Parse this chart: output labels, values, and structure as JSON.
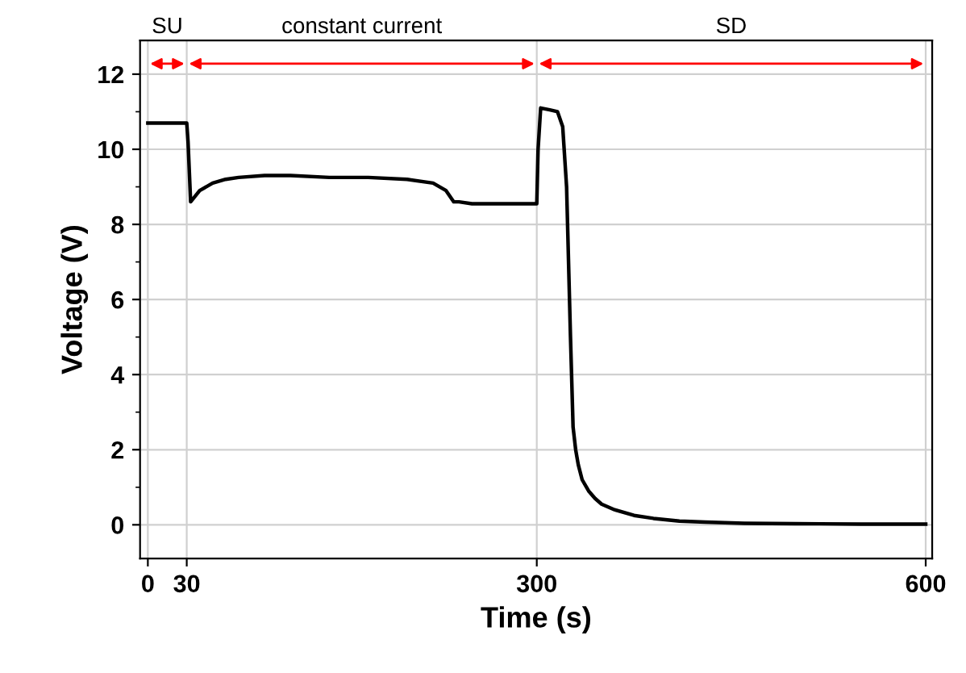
{
  "chart_data": {
    "type": "line",
    "xlabel": "Time (s)",
    "ylabel": "Voltage (V)",
    "xlim": [
      -6,
      605
    ],
    "ylim": [
      -0.9,
      12.9
    ],
    "xticks": [
      0,
      30,
      300,
      600
    ],
    "yticks": [
      0,
      2,
      4,
      6,
      8,
      10,
      12
    ],
    "grid": true,
    "marker": "none",
    "line_style": "solid",
    "annotations": [
      "SU",
      "constant current",
      "SD"
    ],
    "series": [
      {
        "color": "#000000",
        "x": [
          0,
          30,
          31,
          33,
          40,
          50,
          60,
          70,
          90,
          110,
          140,
          170,
          200,
          220,
          230,
          236,
          240,
          250,
          260,
          280,
          300,
          301,
          303,
          310,
          316,
          320,
          323,
          326,
          328,
          330,
          332,
          335,
          340,
          345,
          350,
          360,
          375,
          390,
          410,
          430,
          460,
          500,
          550,
          600
        ],
        "values": [
          10.7,
          10.7,
          10.2,
          8.6,
          8.9,
          9.1,
          9.2,
          9.25,
          9.3,
          9.3,
          9.25,
          9.25,
          9.2,
          9.1,
          8.9,
          8.6,
          8.6,
          8.55,
          8.55,
          8.55,
          8.55,
          10.0,
          11.1,
          11.05,
          11.0,
          10.6,
          9.0,
          5.0,
          2.6,
          2.0,
          1.6,
          1.2,
          0.9,
          0.7,
          0.55,
          0.4,
          0.25,
          0.17,
          0.1,
          0.07,
          0.04,
          0.03,
          0.02,
          0.02
        ]
      }
    ]
  }
}
